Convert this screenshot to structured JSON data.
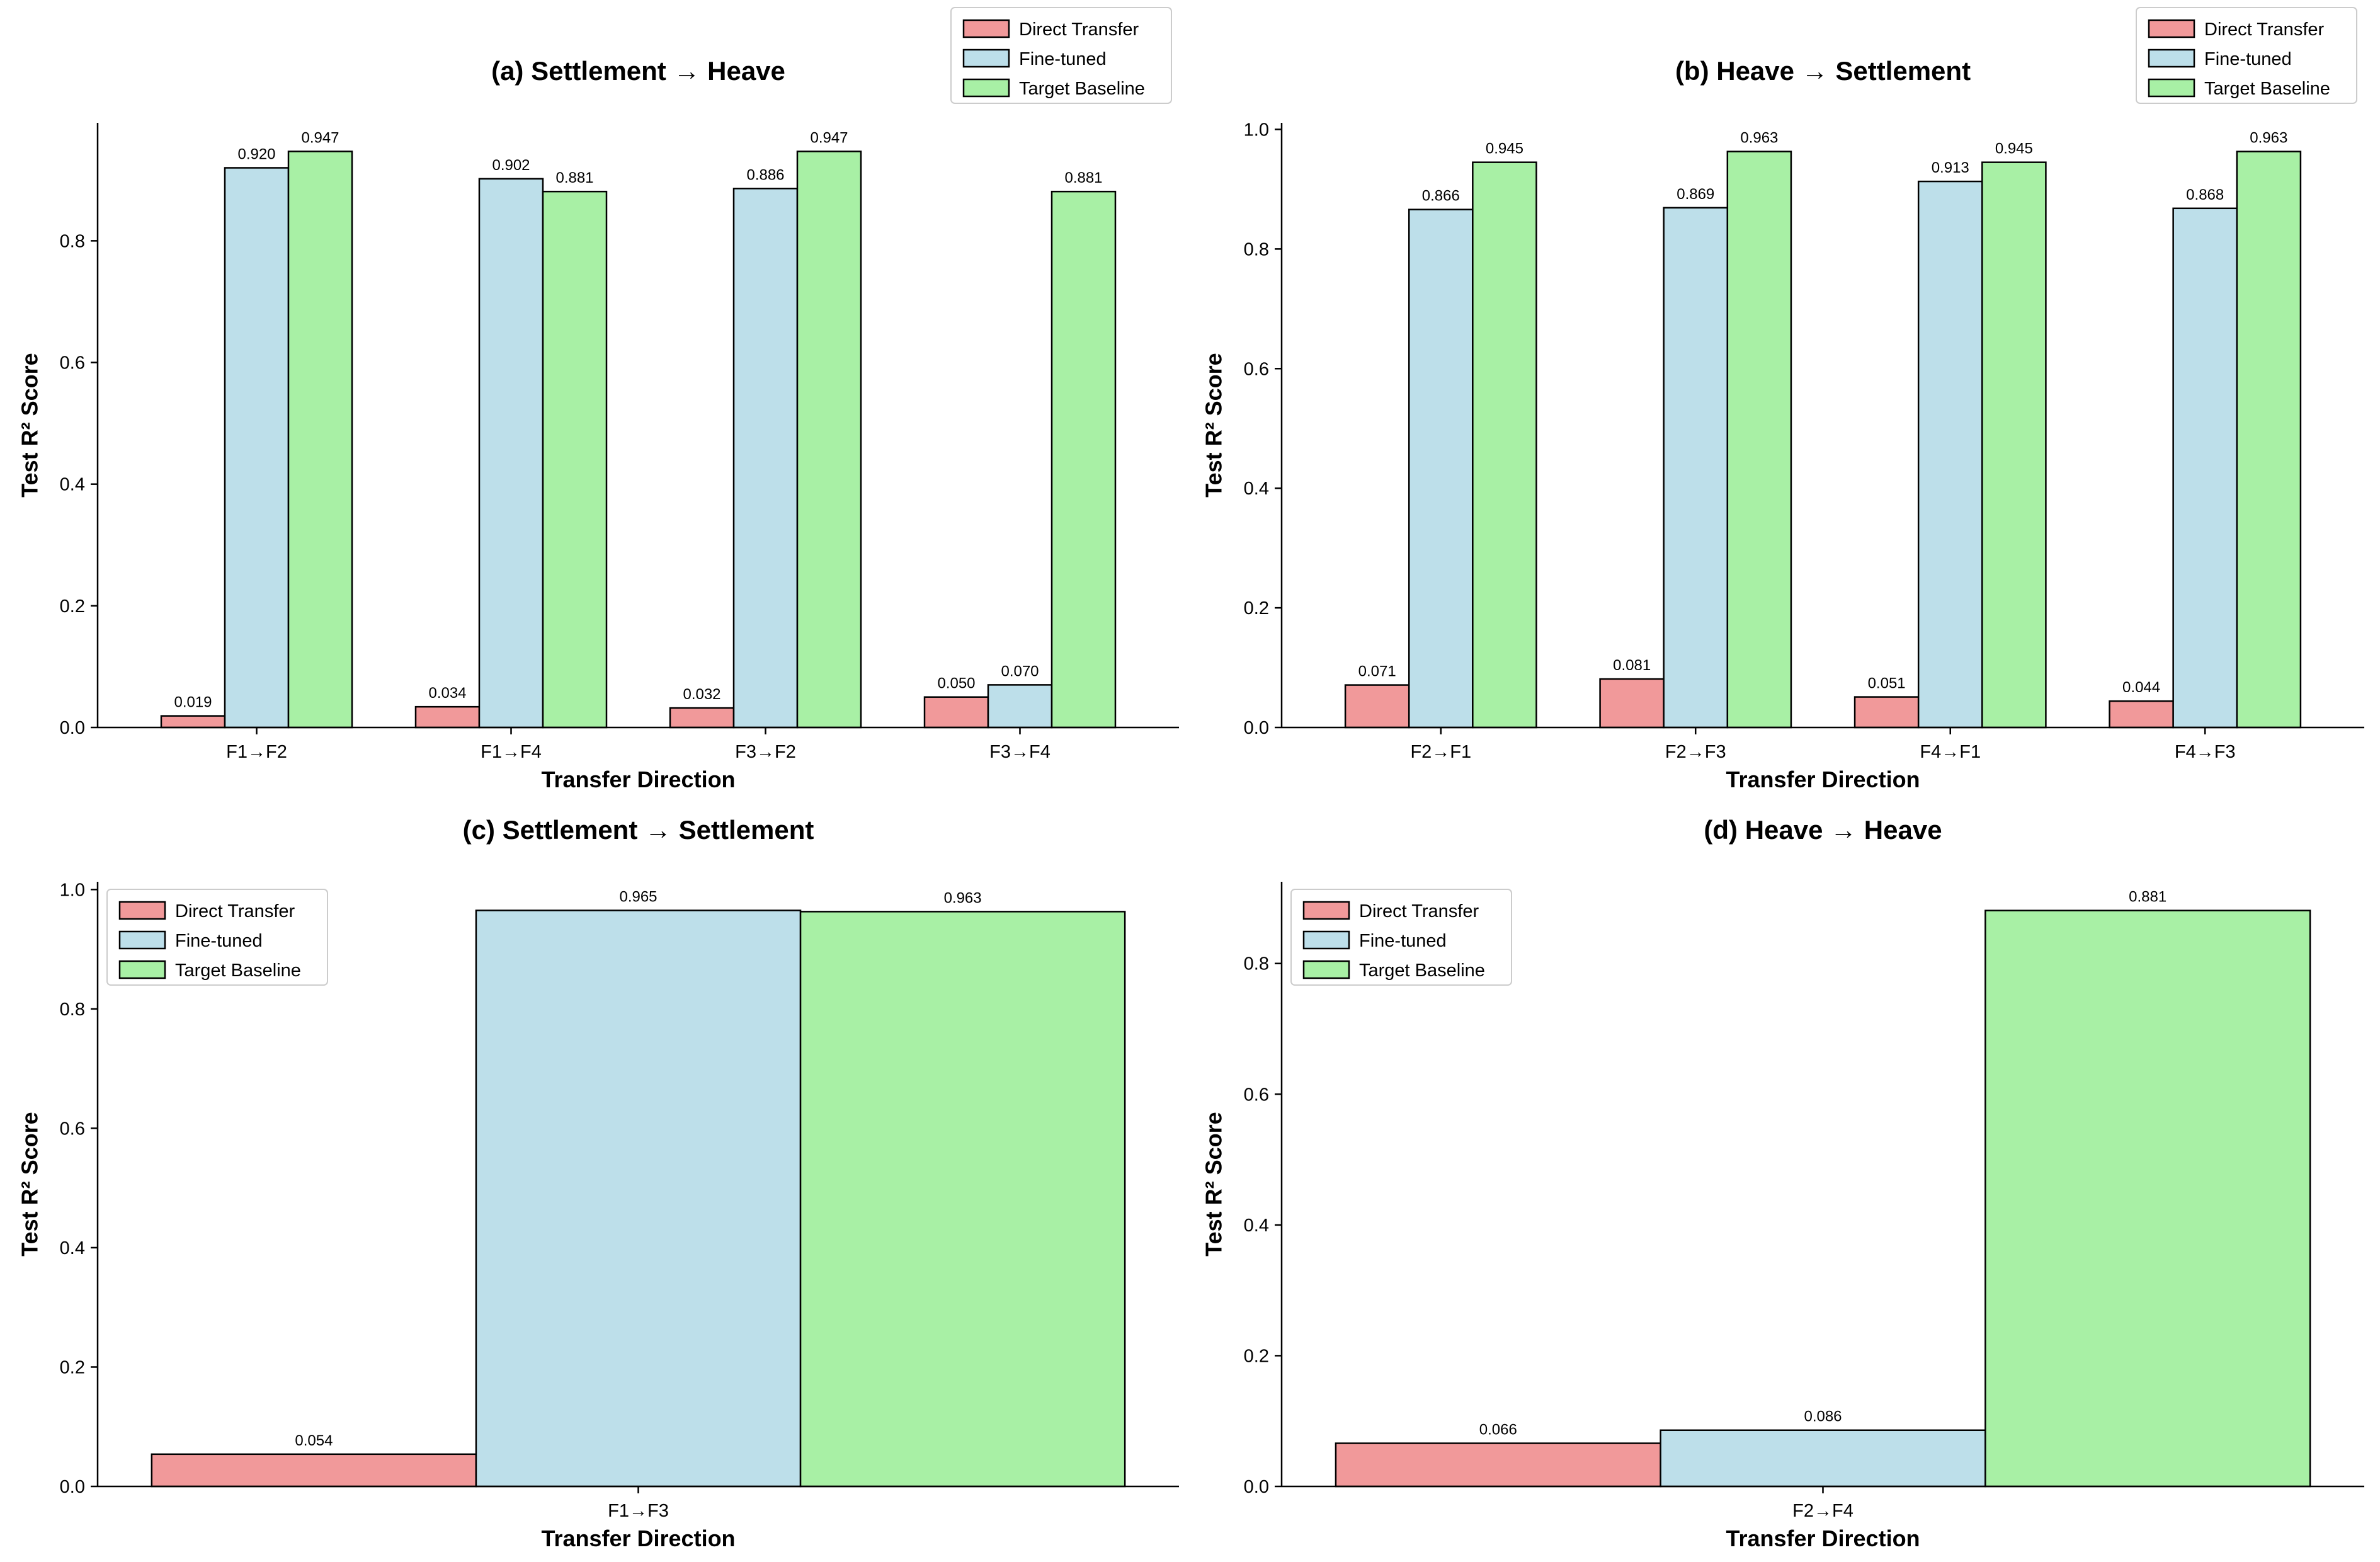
{
  "legend_entries": [
    {
      "key": "direct",
      "label": "Direct Transfer",
      "color": "#F1999A"
    },
    {
      "key": "finetuned",
      "label": "Fine-tuned",
      "color": "#BDDFEA"
    },
    {
      "key": "baseline",
      "label": "Target Baseline",
      "color": "#A8F0A5"
    }
  ],
  "chart_data": [
    {
      "id": "a",
      "type": "bar",
      "title": "(a) Settlement → Heave",
      "xlabel": "Transfer Direction",
      "ylabel": "Test R² Score",
      "ylim": [
        0,
        0.994
      ],
      "yticks": [
        0.0,
        0.2,
        0.4,
        0.6,
        0.8
      ],
      "categories": [
        "F1→F2",
        "F1→F4",
        "F3→F2",
        "F3→F4"
      ],
      "legend_placement": "above top-right",
      "series": [
        {
          "name": "Direct Transfer",
          "values": [
            0.019,
            0.034,
            0.032,
            0.05
          ],
          "labels": [
            "0.019",
            "0.034",
            "0.032",
            "0.050"
          ]
        },
        {
          "name": "Fine-tuned",
          "values": [
            0.92,
            0.902,
            0.886,
            0.07
          ],
          "labels": [
            "0.920",
            "0.902",
            "0.886",
            "0.070"
          ]
        },
        {
          "name": "Target Baseline",
          "values": [
            0.947,
            0.881,
            0.947,
            0.881
          ],
          "labels": [
            "0.947",
            "0.881",
            "0.947",
            "0.881"
          ]
        }
      ]
    },
    {
      "id": "b",
      "type": "bar",
      "title": "(b) Heave → Settlement",
      "xlabel": "Transfer Direction",
      "ylabel": "Test R² Score",
      "ylim": [
        0,
        1.011
      ],
      "yticks": [
        0.0,
        0.2,
        0.4,
        0.6,
        0.8,
        1.0
      ],
      "categories": [
        "F2→F1",
        "F2→F3",
        "F4→F1",
        "F4→F3"
      ],
      "legend_placement": "above top-right",
      "series": [
        {
          "name": "Direct Transfer",
          "values": [
            0.071,
            0.081,
            0.051,
            0.044
          ],
          "labels": [
            "0.071",
            "0.081",
            "0.051",
            "0.044"
          ]
        },
        {
          "name": "Fine-tuned",
          "values": [
            0.866,
            0.869,
            0.913,
            0.868
          ],
          "labels": [
            "0.866",
            "0.869",
            "0.913",
            "0.868"
          ]
        },
        {
          "name": "Target Baseline",
          "values": [
            0.945,
            0.963,
            0.945,
            0.963
          ],
          "labels": [
            "0.945",
            "0.963",
            "0.945",
            "0.963"
          ]
        }
      ]
    },
    {
      "id": "c",
      "type": "bar",
      "title": "(c) Settlement → Settlement",
      "xlabel": "Transfer Direction",
      "ylabel": "Test R² Score",
      "ylim": [
        0,
        1.013
      ],
      "yticks": [
        0.0,
        0.2,
        0.4,
        0.6,
        0.8,
        1.0
      ],
      "categories": [
        "F1→F3"
      ],
      "legend_placement": "top-left",
      "series": [
        {
          "name": "Direct Transfer",
          "values": [
            0.054
          ],
          "labels": [
            "0.054"
          ]
        },
        {
          "name": "Fine-tuned",
          "values": [
            0.965
          ],
          "labels": [
            "0.965"
          ]
        },
        {
          "name": "Target Baseline",
          "values": [
            0.963
          ],
          "labels": [
            "0.963"
          ]
        }
      ]
    },
    {
      "id": "d",
      "type": "bar",
      "title": "(d) Heave → Heave",
      "xlabel": "Transfer Direction",
      "ylabel": "Test R² Score",
      "ylim": [
        0,
        0.925
      ],
      "yticks": [
        0.0,
        0.2,
        0.4,
        0.6,
        0.8
      ],
      "categories": [
        "F2→F4"
      ],
      "legend_placement": "top-left",
      "series": [
        {
          "name": "Direct Transfer",
          "values": [
            0.066
          ],
          "labels": [
            "0.066"
          ]
        },
        {
          "name": "Fine-tuned",
          "values": [
            0.086
          ],
          "labels": [
            "0.086"
          ]
        },
        {
          "name": "Target Baseline",
          "values": [
            0.881
          ],
          "labels": [
            "0.881"
          ]
        }
      ]
    }
  ]
}
